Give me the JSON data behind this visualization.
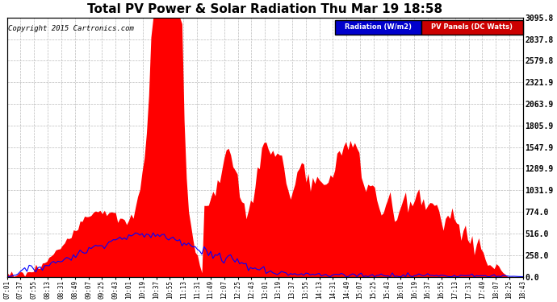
{
  "title": "Total PV Power & Solar Radiation Thu Mar 19 18:58",
  "copyright": "Copyright 2015 Cartronics.com",
  "legend_radiation": "Radiation (W/m2)",
  "legend_pv": "PV Panels (DC Watts)",
  "legend_radiation_bg": "#0000cc",
  "legend_pv_bg": "#cc0000",
  "y_max": 3095.8,
  "y_ticks": [
    0.0,
    258.0,
    516.0,
    774.0,
    1031.9,
    1289.9,
    1547.9,
    1805.9,
    2063.9,
    2321.9,
    2579.8,
    2837.8,
    3095.8
  ],
  "bg_color": "#ffffff",
  "plot_bg_color": "#ffffff",
  "grid_color": "#bbbbbb",
  "pv_fill_color": "#ff0000",
  "radiation_line_color": "#0000ff",
  "x_labels": [
    "07:01",
    "07:37",
    "07:55",
    "08:13",
    "08:31",
    "08:49",
    "09:07",
    "09:25",
    "09:43",
    "10:01",
    "10:19",
    "10:37",
    "10:55",
    "11:13",
    "11:31",
    "11:49",
    "12:07",
    "12:25",
    "12:43",
    "13:01",
    "13:19",
    "13:37",
    "13:55",
    "14:13",
    "14:31",
    "14:49",
    "15:07",
    "15:25",
    "15:43",
    "16:01",
    "16:19",
    "16:37",
    "16:55",
    "17:13",
    "17:31",
    "17:49",
    "18:07",
    "18:25",
    "18:43"
  ]
}
